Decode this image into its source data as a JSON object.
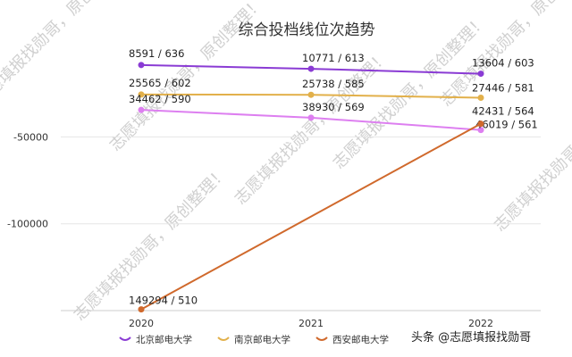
{
  "chart_data": {
    "type": "line",
    "title": "综合投档线位次趋势",
    "categories": [
      "2020",
      "2021",
      "2022"
    ],
    "yticks": [
      -50000,
      -100000
    ],
    "ylim": [
      -150000,
      0
    ],
    "grid": true,
    "legend_position": "bottom",
    "series": [
      {
        "name": "北京邮电大学",
        "color": "#8a3bd4",
        "values": [
          -8591,
          -10771,
          -13604
        ],
        "labels": [
          "8591 / 636",
          "10771 / 613",
          "13604 / 603"
        ]
      },
      {
        "name": "南京邮电大学",
        "color": "#e2b04a",
        "values": [
          -25565,
          -25738,
          -27446
        ],
        "labels": [
          "25565 / 602",
          "25738 / 585",
          "27446 / 581"
        ]
      },
      {
        "name": "",
        "color": "#dd7ff0",
        "values": [
          -34462,
          -38930,
          -46019
        ],
        "labels": [
          "34462 / 590",
          "38930 / 569",
          "46019 / 561"
        ]
      },
      {
        "name": "西安邮电大学",
        "color": "#d0692c",
        "values": [
          -149294,
          null,
          -42431
        ],
        "labels": [
          "149294 / 510",
          "",
          "42431 / 564"
        ]
      }
    ]
  },
  "watermark": "志愿填报找勋哥，原创整理！",
  "credit": "头条 @志愿填报找勋哥"
}
